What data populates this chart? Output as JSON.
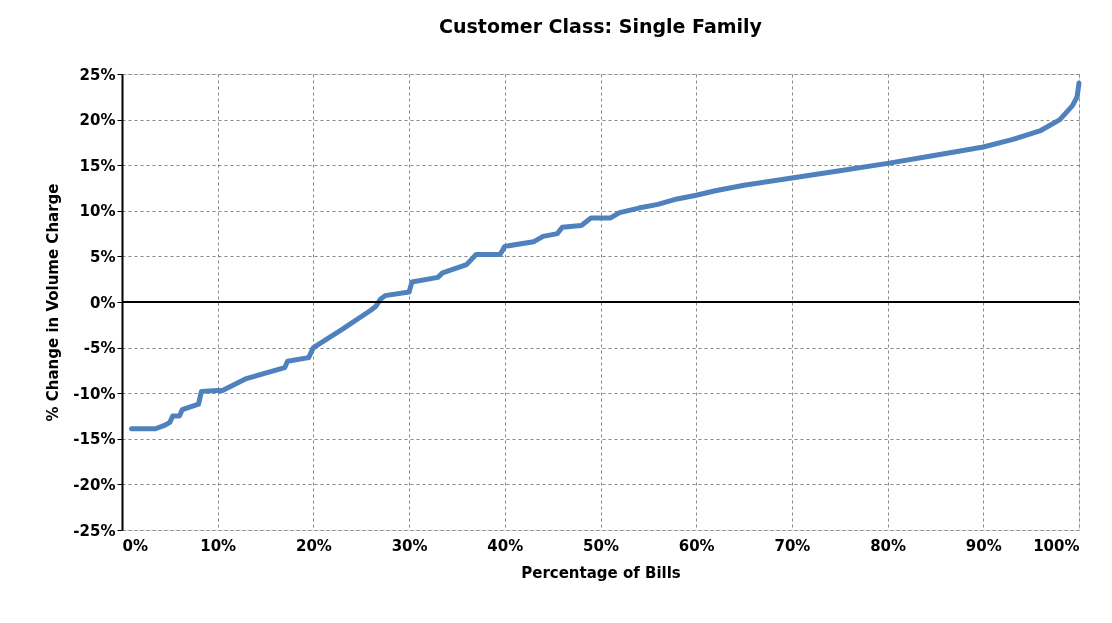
{
  "chart_data": {
    "type": "line",
    "title": "Customer Class: Single Family",
    "xlabel": "Percentage of Bills",
    "ylabel": "% Change in Volume Charge",
    "x": [
      1,
      3.5,
      4.5,
      5,
      5.3,
      6,
      6.3,
      8,
      8.3,
      10,
      10.5,
      13,
      17,
      17.3,
      19.5,
      20,
      23,
      26,
      26.5,
      27,
      27.5,
      30,
      30.3,
      33,
      33.5,
      36,
      37,
      39.5,
      40,
      43,
      44,
      45.5,
      46,
      48,
      49,
      51,
      52,
      54,
      56,
      58,
      60,
      62,
      65,
      70,
      75,
      80,
      85,
      90,
      93,
      96,
      98,
      99.3,
      99.8,
      100
    ],
    "series": [
      {
        "color": "#4f81bd",
        "values": [
          -13.9,
          -13.9,
          -13.5,
          -13.2,
          -12.5,
          -12.5,
          -11.8,
          -11.2,
          -9.8,
          -9.7,
          -9.7,
          -8.4,
          -7.2,
          -6.5,
          -6.1,
          -5,
          -3,
          -0.9,
          -0.5,
          0.3,
          0.7,
          1.1,
          2.2,
          2.7,
          3.2,
          4.1,
          5.2,
          5.2,
          6.1,
          6.6,
          7.2,
          7.5,
          8.2,
          8.4,
          9.2,
          9.2,
          9.8,
          10.3,
          10.7,
          11.3,
          11.7,
          12.2,
          12.8,
          13.6,
          14.4,
          15.2,
          16.1,
          17,
          17.8,
          18.8,
          20,
          21.5,
          22.5,
          24
        ]
      }
    ],
    "xlim": [
      0,
      100
    ],
    "xticks": [
      {
        "value": 0,
        "label": "0%"
      },
      {
        "value": 10,
        "label": "10%"
      },
      {
        "value": 20,
        "label": "20%"
      },
      {
        "value": 30,
        "label": "30%"
      },
      {
        "value": 40,
        "label": "40%"
      },
      {
        "value": 50,
        "label": "50%"
      },
      {
        "value": 60,
        "label": "60%"
      },
      {
        "value": 70,
        "label": "70%"
      },
      {
        "value": 80,
        "label": "80%"
      },
      {
        "value": 90,
        "label": "90%"
      },
      {
        "value": 100,
        "label": "100%"
      }
    ],
    "ylim": [
      -25,
      25
    ],
    "yticks": [
      {
        "value": -25,
        "label": "-25%"
      },
      {
        "value": -20,
        "label": "-20%"
      },
      {
        "value": -15,
        "label": "-15%"
      },
      {
        "value": -10,
        "label": "-10%"
      },
      {
        "value": -5,
        "label": "-5%"
      },
      {
        "value": 0,
        "label": "0%"
      },
      {
        "value": 5,
        "label": "5%"
      },
      {
        "value": 10,
        "label": "10%"
      },
      {
        "value": 15,
        "label": "15%"
      },
      {
        "value": 20,
        "label": "20%"
      },
      {
        "value": 25,
        "label": "25%"
      }
    ],
    "ref_lines": [
      {
        "axis": "y",
        "value": 0,
        "label": null,
        "color": "#000000"
      }
    ],
    "grid": true,
    "marker": "none",
    "line_style": "solid"
  }
}
